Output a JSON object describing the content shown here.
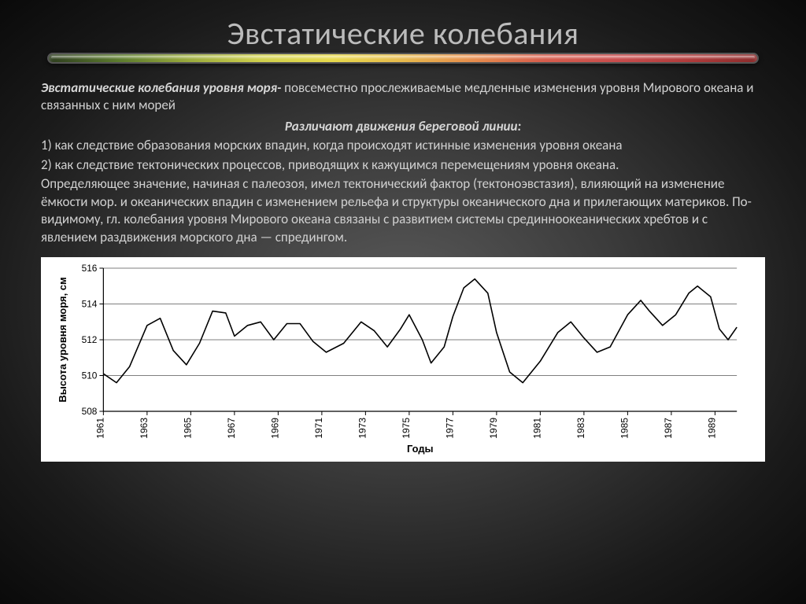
{
  "slide": {
    "title": "Эвстатические колебания"
  },
  "text": {
    "intro_bold": "Эвстатические колебания  уровня моря-",
    "intro_rest": " повсеместно прослеживаемые медленные изменения уровня Мирового океана и связанных с ним морей",
    "subhead": "Различают движения береговой линии:",
    "p1": "1) как следствие образования морских впадин, когда происходят истинные изменения уровня океана",
    "p2": "2) как следствие тектонических процессов, приводящих к кажущимся перемещениям уровня океана.",
    "p3": "Определяющее значение, начиная с палеозоя, имел тектонический фактор (тектоноэвстазия), влияющий на изменение ёмкости мор. и океанических впадин с изменением рельефа и структуры океанического дна и прилегающих материков. По-видимому, гл. колебания уровня Мирового океана связаны с развитием системы срединноокеанических хребтов и с явлением раздвижения морского дна — спредингом."
  },
  "chart": {
    "type": "line",
    "ylabel": "Высота уровня моря, см",
    "xlabel": "Годы",
    "background_color": "#ffffff",
    "line_color": "#000000",
    "axis_color": "#000000",
    "grid_color": "#000000",
    "line_width": 1.6,
    "axis_width": 1.2,
    "label_fontsize": 13,
    "tick_fontsize": 12,
    "ylim": [
      508,
      516
    ],
    "ytick_step": 2,
    "yticks": [
      508,
      510,
      512,
      514,
      516
    ],
    "xlim": [
      1961,
      1990
    ],
    "xticks": [
      1961,
      1963,
      1965,
      1967,
      1969,
      1971,
      1973,
      1975,
      1977,
      1979,
      1981,
      1983,
      1985,
      1987,
      1989
    ],
    "series": [
      {
        "x": 1961.0,
        "y": 510.1
      },
      {
        "x": 1961.6,
        "y": 509.6
      },
      {
        "x": 1962.2,
        "y": 510.5
      },
      {
        "x": 1963.0,
        "y": 512.8
      },
      {
        "x": 1963.6,
        "y": 513.2
      },
      {
        "x": 1964.2,
        "y": 511.4
      },
      {
        "x": 1964.8,
        "y": 510.6
      },
      {
        "x": 1965.4,
        "y": 511.8
      },
      {
        "x": 1966.0,
        "y": 513.6
      },
      {
        "x": 1966.6,
        "y": 513.5
      },
      {
        "x": 1967.0,
        "y": 512.2
      },
      {
        "x": 1967.6,
        "y": 512.8
      },
      {
        "x": 1968.2,
        "y": 513.0
      },
      {
        "x": 1968.8,
        "y": 512.0
      },
      {
        "x": 1969.4,
        "y": 512.9
      },
      {
        "x": 1970.0,
        "y": 512.9
      },
      {
        "x": 1970.6,
        "y": 511.9
      },
      {
        "x": 1971.2,
        "y": 511.3
      },
      {
        "x": 1972.0,
        "y": 511.8
      },
      {
        "x": 1972.8,
        "y": 513.0
      },
      {
        "x": 1973.4,
        "y": 512.5
      },
      {
        "x": 1974.0,
        "y": 511.6
      },
      {
        "x": 1974.6,
        "y": 512.6
      },
      {
        "x": 1975.0,
        "y": 513.4
      },
      {
        "x": 1975.6,
        "y": 512.0
      },
      {
        "x": 1976.0,
        "y": 510.7
      },
      {
        "x": 1976.6,
        "y": 511.6
      },
      {
        "x": 1977.0,
        "y": 513.3
      },
      {
        "x": 1977.5,
        "y": 514.9
      },
      {
        "x": 1978.0,
        "y": 515.4
      },
      {
        "x": 1978.6,
        "y": 514.6
      },
      {
        "x": 1979.0,
        "y": 512.4
      },
      {
        "x": 1979.6,
        "y": 510.2
      },
      {
        "x": 1980.2,
        "y": 509.6
      },
      {
        "x": 1981.0,
        "y": 510.8
      },
      {
        "x": 1981.8,
        "y": 512.4
      },
      {
        "x": 1982.4,
        "y": 513.0
      },
      {
        "x": 1983.0,
        "y": 512.1
      },
      {
        "x": 1983.6,
        "y": 511.3
      },
      {
        "x": 1984.2,
        "y": 511.6
      },
      {
        "x": 1985.0,
        "y": 513.4
      },
      {
        "x": 1985.6,
        "y": 514.2
      },
      {
        "x": 1986.0,
        "y": 513.6
      },
      {
        "x": 1986.6,
        "y": 512.8
      },
      {
        "x": 1987.2,
        "y": 513.4
      },
      {
        "x": 1987.8,
        "y": 514.6
      },
      {
        "x": 1988.2,
        "y": 515.0
      },
      {
        "x": 1988.8,
        "y": 514.4
      },
      {
        "x": 1989.2,
        "y": 512.6
      },
      {
        "x": 1989.6,
        "y": 512.0
      },
      {
        "x": 1990.0,
        "y": 512.7
      }
    ]
  }
}
